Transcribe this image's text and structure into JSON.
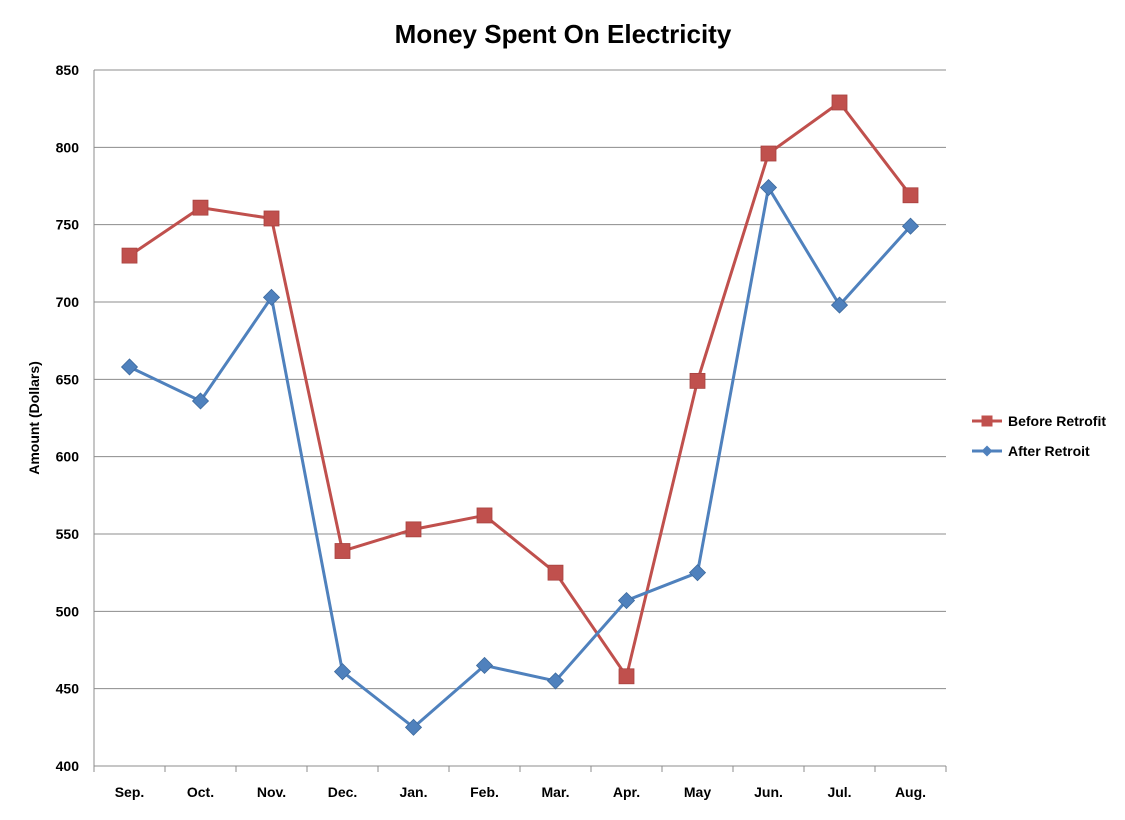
{
  "chart_data": {
    "type": "line",
    "title": "Money Spent On Electricity",
    "xlabel": "",
    "ylabel": "Amount (Dollars)",
    "categories": [
      "Sep.",
      "Oct.",
      "Nov.",
      "Dec.",
      "Jan.",
      "Feb.",
      "Mar.",
      "Apr.",
      "May",
      "Jun.",
      "Jul.",
      "Aug."
    ],
    "ylim": [
      400,
      850
    ],
    "yticks": [
      "850",
      "800",
      "750",
      "700",
      "650",
      "600",
      "550",
      "500",
      "450",
      "400"
    ],
    "grid": true,
    "legend_position": "right",
    "series": [
      {
        "name": "Before Retrofit",
        "color": "#c0504d",
        "marker": "square",
        "values": [
          730,
          761,
          754,
          539,
          553,
          562,
          525,
          458,
          649,
          796,
          829,
          769
        ]
      },
      {
        "name": "After Retroit",
        "color": "#4f81bd",
        "marker": "diamond",
        "values": [
          658,
          636,
          703,
          461,
          425,
          465,
          455,
          507,
          525,
          774,
          698,
          749
        ]
      }
    ]
  }
}
